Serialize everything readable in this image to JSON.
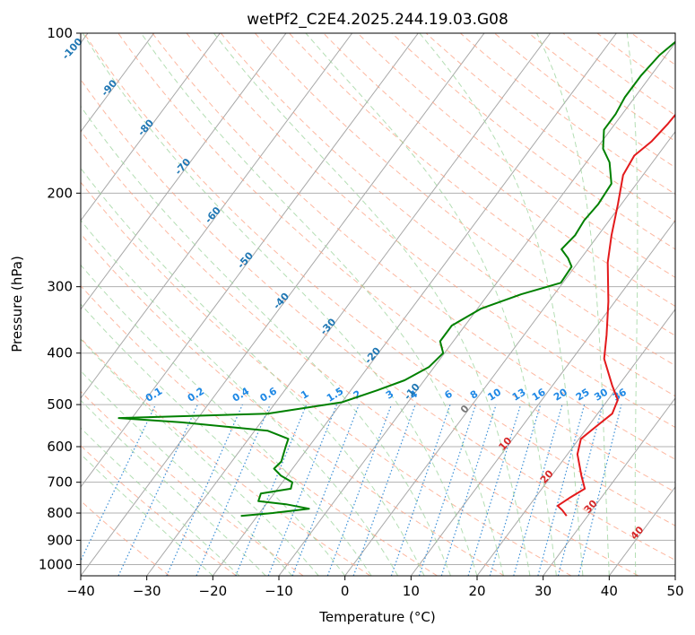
{
  "chart_data": {
    "type": "line",
    "subtype": "skew-T log-P sounding",
    "title": "wetPf2_C2E4.2025.244.19.03.G08",
    "xlabel": "Temperature (°C)",
    "ylabel": "Pressure (hPa)",
    "xlim": [
      -40,
      50
    ],
    "ylim": [
      1050,
      100
    ],
    "y_scale": "log",
    "grid": true,
    "x_ticks": [
      "−40",
      "−30",
      "−20",
      "−10",
      "0",
      "10",
      "20",
      "30",
      "40",
      "50"
    ],
    "x_tick_values": [
      -40,
      -30,
      -20,
      -10,
      0,
      10,
      20,
      30,
      40,
      50
    ],
    "y_ticks": [
      "100",
      "200",
      "300",
      "400",
      "500",
      "600",
      "700",
      "800",
      "900",
      "1000"
    ],
    "y_tick_values": [
      100,
      200,
      300,
      400,
      500,
      600,
      700,
      800,
      900,
      1000
    ],
    "series": [
      {
        "color": "#e31a1c",
        "points": [
          [
            26.8,
            810
          ],
          [
            25.5,
            790
          ],
          [
            24.3,
            775
          ],
          [
            25.2,
            750
          ],
          [
            26.5,
            720
          ],
          [
            24.5,
            680
          ],
          [
            21.5,
            620
          ],
          [
            20.3,
            580
          ],
          [
            21.2,
            550
          ],
          [
            22.2,
            520
          ],
          [
            21.5,
            490
          ],
          [
            19.0,
            460
          ],
          [
            14.8,
            410
          ],
          [
            12.5,
            370
          ],
          [
            9.0,
            320
          ],
          [
            4.5,
            270
          ],
          [
            2.0,
            240
          ],
          [
            -0.5,
            210
          ],
          [
            -3.0,
            185
          ],
          [
            -3.5,
            170
          ],
          [
            -2.5,
            160
          ],
          [
            -2.0,
            148
          ],
          [
            -1.8,
            138
          ],
          [
            -0.5,
            128
          ],
          [
            1.5,
            115
          ],
          [
            2.5,
            100
          ]
        ]
      },
      {
        "color": "#008000",
        "points": [
          [
            -22.5,
            810
          ],
          [
            -18.0,
            800
          ],
          [
            -13.0,
            785
          ],
          [
            -17.0,
            770
          ],
          [
            -21.5,
            760
          ],
          [
            -22.0,
            735
          ],
          [
            -18.0,
            720
          ],
          [
            -18.5,
            700
          ],
          [
            -21.0,
            680
          ],
          [
            -22.8,
            660
          ],
          [
            -22.5,
            640
          ],
          [
            -23.0,
            620
          ],
          [
            -23.5,
            600
          ],
          [
            -24.0,
            580
          ],
          [
            -28.0,
            560
          ],
          [
            -42.0,
            540
          ],
          [
            -52.0,
            530
          ],
          [
            -30.0,
            520
          ],
          [
            -20.0,
            495
          ],
          [
            -16.0,
            470
          ],
          [
            -13.0,
            450
          ],
          [
            -10.8,
            425
          ],
          [
            -10.2,
            400
          ],
          [
            -12.0,
            380
          ],
          [
            -12.0,
            355
          ],
          [
            -9.5,
            330
          ],
          [
            -5.0,
            310
          ],
          [
            -0.3,
            295
          ],
          [
            -0.5,
            275
          ],
          [
            -2.0,
            265
          ],
          [
            -4.0,
            255
          ],
          [
            -3.5,
            240
          ],
          [
            -3.8,
            225
          ],
          [
            -3.5,
            210
          ],
          [
            -3.8,
            192
          ],
          [
            -6.5,
            175
          ],
          [
            -9.0,
            165
          ],
          [
            -11.0,
            152
          ],
          [
            -11.0,
            142
          ],
          [
            -11.5,
            132
          ],
          [
            -11.5,
            120
          ],
          [
            -11.0,
            110
          ],
          [
            -9.5,
            100
          ]
        ]
      }
    ],
    "dry_adiabat_labels": [
      "-100",
      "-90",
      "-80",
      "-70",
      "-60",
      "-50",
      "-40",
      "-30",
      "-20",
      "-10",
      "0",
      "10",
      "20",
      "30",
      "40"
    ],
    "mixing_ratio_labels": [
      "0.1",
      "0.2",
      "0.4",
      "0.6",
      "1",
      "1.5",
      "2",
      "3",
      "4",
      "6",
      "8",
      "10",
      "13",
      "16",
      "20",
      "25",
      "30",
      "36"
    ],
    "colors": {
      "temperature": "#e31a1c",
      "dewpoint": "#008000",
      "dry_adiabat_label": "#1f77b4",
      "mixing_ratio": "#1e88e5",
      "moist_adiabat_label": "#d62728",
      "isotherm": "#808080",
      "dry_adiabat_line": "#fca082",
      "moist_adiabat_line": "#9bd39b",
      "mixing_line": "#3b8fd6"
    }
  }
}
